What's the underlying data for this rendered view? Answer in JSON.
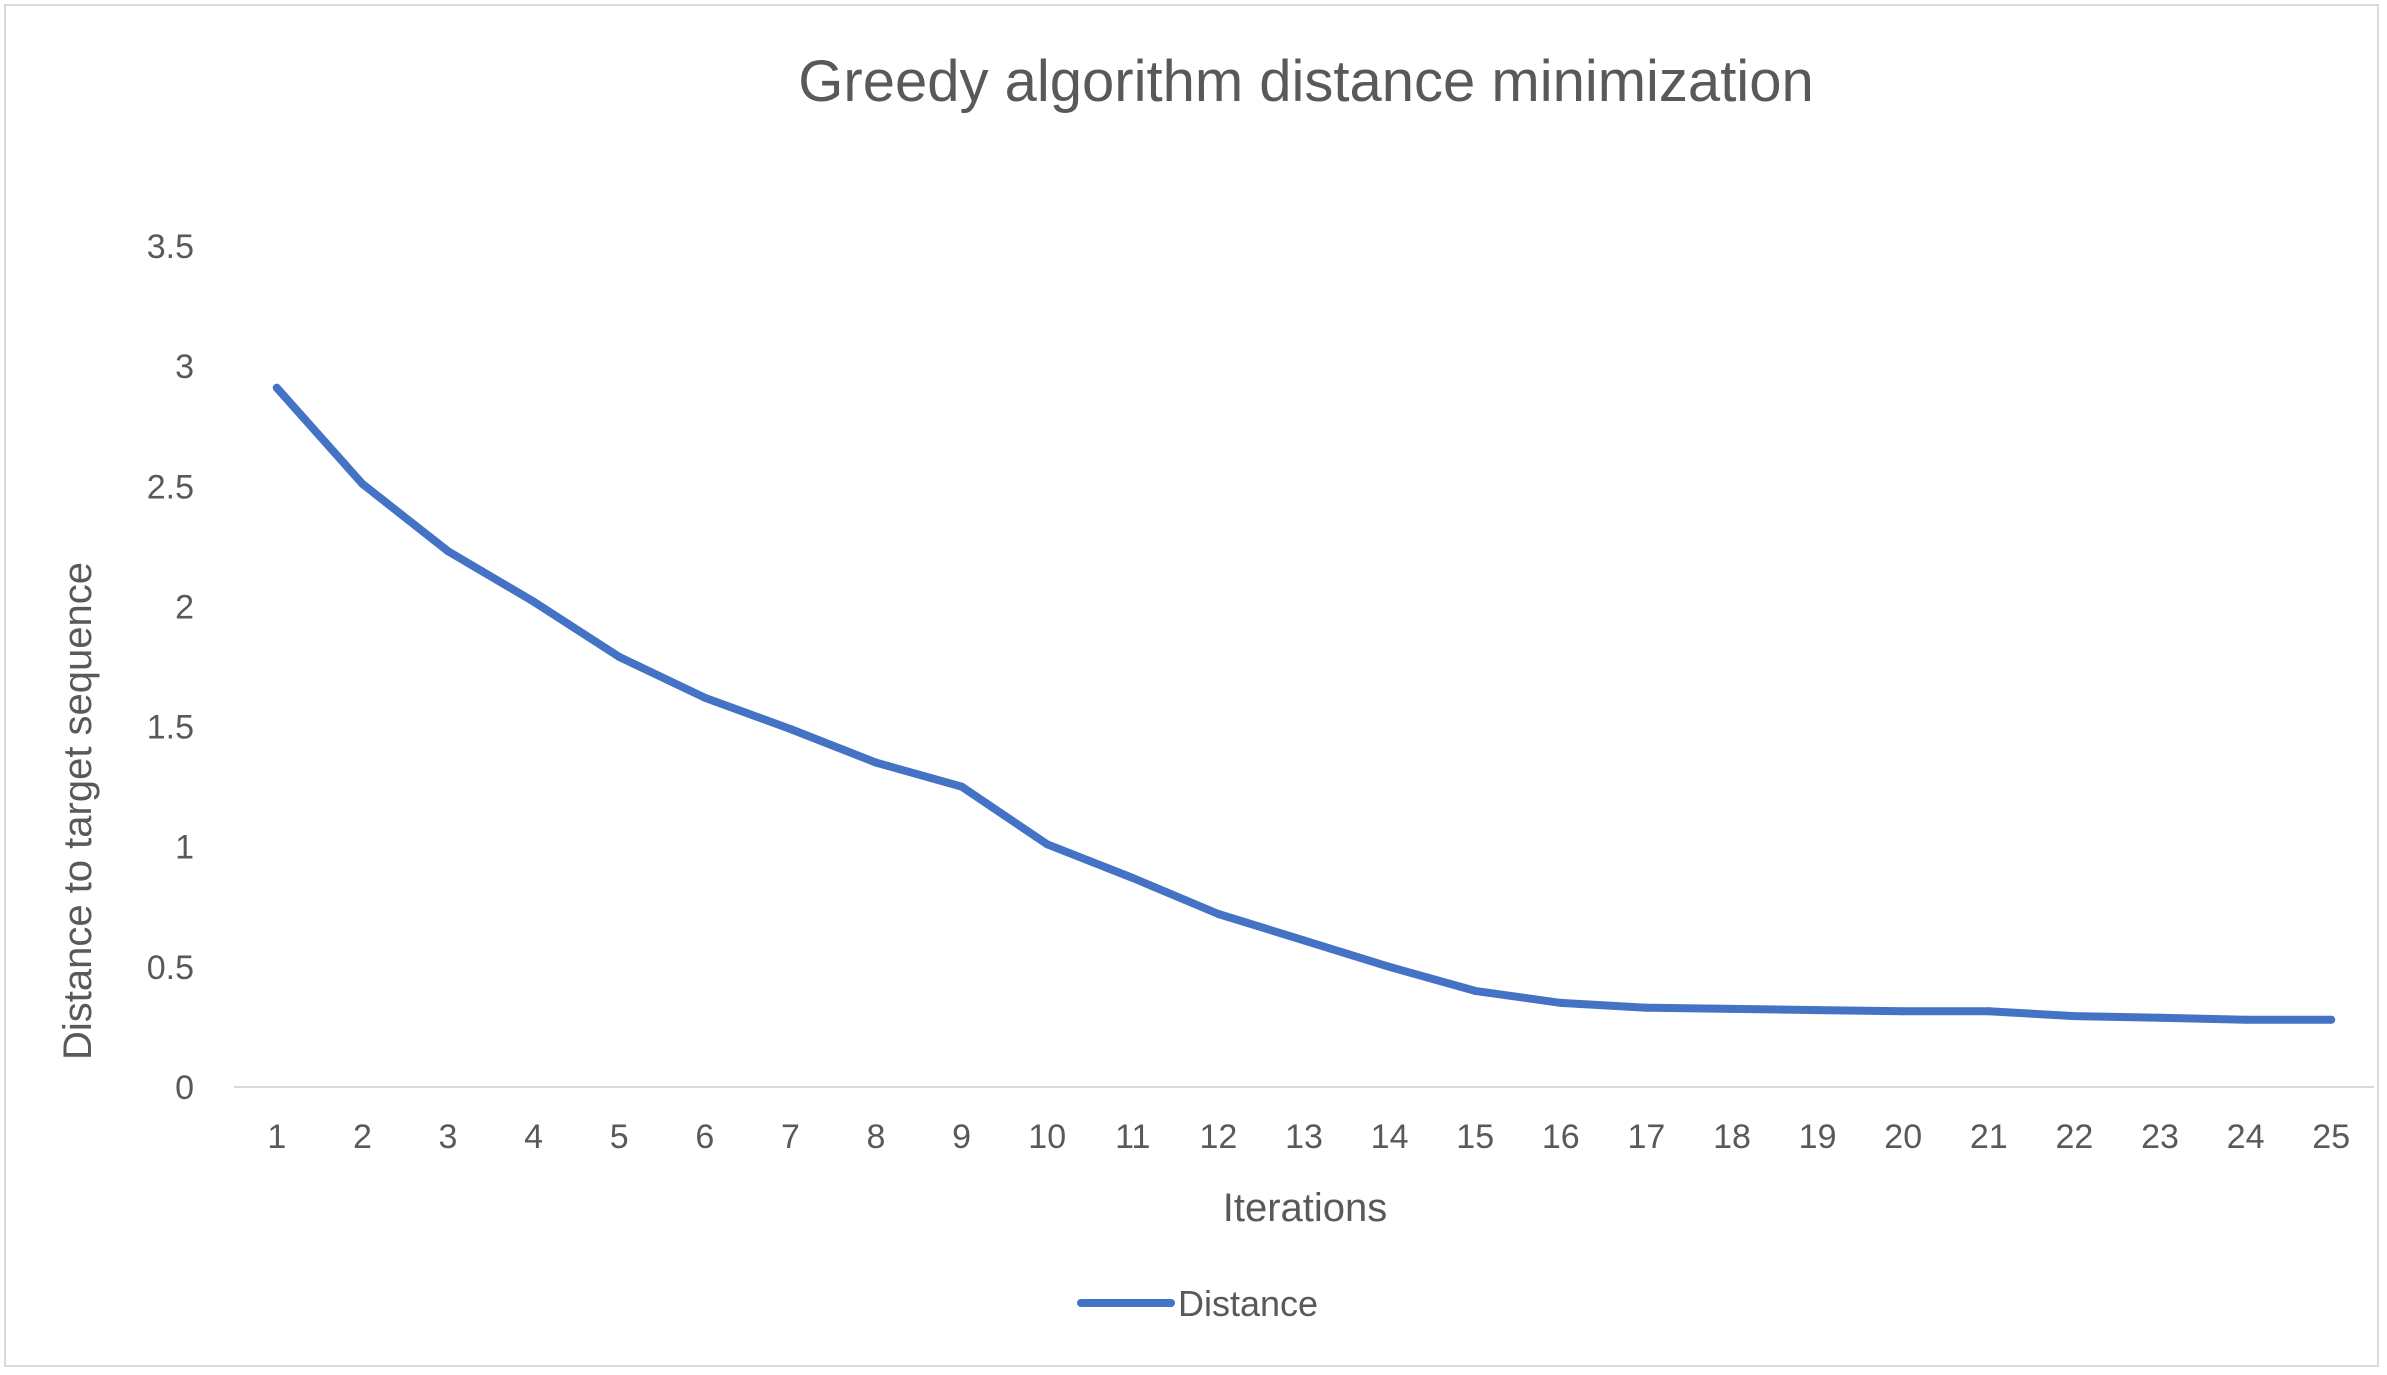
{
  "chart_data": {
    "type": "line",
    "title": "Greedy algorithm distance minimization",
    "xlabel": "Iterations",
    "ylabel": "Distance to target sequence",
    "categories": [
      "1",
      "2",
      "3",
      "4",
      "5",
      "6",
      "7",
      "8",
      "9",
      "10",
      "11",
      "12",
      "13",
      "14",
      "15",
      "16",
      "17",
      "18",
      "19",
      "20",
      "21",
      "22",
      "23",
      "24",
      "25"
    ],
    "series": [
      {
        "name": "Distance",
        "color": "#4472c4",
        "values": [
          2.91,
          2.51,
          2.23,
          2.02,
          1.79,
          1.62,
          1.49,
          1.35,
          1.25,
          1.01,
          0.87,
          0.72,
          0.61,
          0.5,
          0.4,
          0.35,
          0.33,
          0.325,
          0.32,
          0.315,
          0.315,
          0.295,
          0.288,
          0.28,
          0.28
        ]
      }
    ],
    "yticks": [
      "0",
      "0.5",
      "1",
      "1.5",
      "2",
      "2.5",
      "3",
      "3.5"
    ],
    "ylim": [
      0,
      3.5
    ],
    "grid": false,
    "legend": "bottom"
  }
}
